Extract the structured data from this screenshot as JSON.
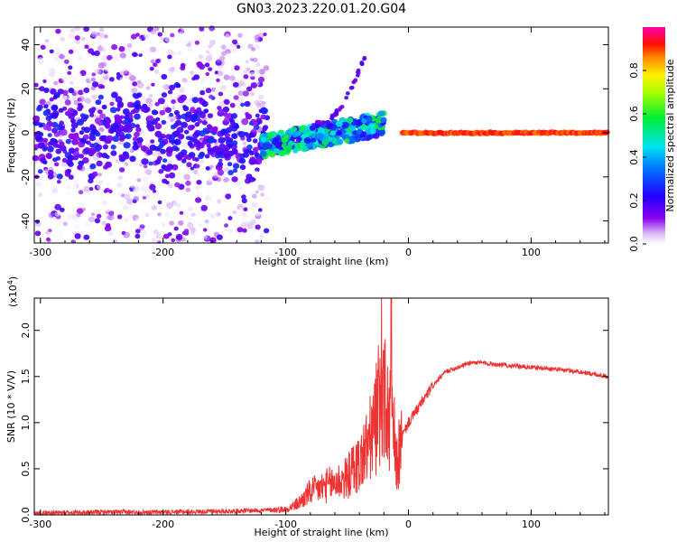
{
  "title": "GN03.2023.220.01.20.G04",
  "chart_data": [
    {
      "type": "scatter",
      "name": "spectrogram",
      "xlabel": "Height of straight line (km)",
      "ylabel": "Frequency (Hz)",
      "xlim": [
        -305,
        163
      ],
      "ylim": [
        -50,
        48
      ],
      "xticks": [
        -300,
        -200,
        -100,
        0,
        100
      ],
      "yticks": [
        -40,
        -20,
        0,
        20,
        40
      ],
      "colorbar": {
        "label": "Normalized spectral amplitude",
        "range": [
          0,
          1
        ],
        "ticks": [
          0.0,
          0.2,
          0.4,
          0.6,
          0.8
        ],
        "tick_labels": [
          "0.0",
          "0.2",
          "0.4",
          "0.6",
          "0.8"
        ],
        "colormap": "rainbow (purple-blue-cyan-green-yellow-red-magenta)"
      },
      "features": {
        "carrier_line": {
          "x_range": [
            -5,
            163
          ],
          "frequency": 0,
          "amplitude": 0.9
        },
        "approach_band": {
          "x_range": [
            -120,
            -20
          ],
          "frequency_range": [
            -12,
            10
          ],
          "amplitude_range": [
            0.3,
            0.6
          ]
        },
        "scatter_region": {
          "x_range": [
            -305,
            -115
          ],
          "frequency_range": [
            -50,
            48
          ],
          "amplitude_range": [
            0.0,
            0.3
          ]
        }
      }
    },
    {
      "type": "line",
      "name": "snr",
      "xlabel": "Height of straight line (km)",
      "ylabel": "SNR (10 * V/V)",
      "multiplier_label": "(x10",
      "multiplier_exp": "4",
      "multiplier_close": ")",
      "xlim": [
        -305,
        163
      ],
      "ylim": [
        0,
        2.35
      ],
      "xticks": [
        -300,
        -200,
        -100,
        0,
        100
      ],
      "yticks": [
        0.0,
        0.5,
        1.0,
        1.5,
        2.0
      ],
      "line_color": "#ee3333",
      "series": [
        {
          "x": [
            -305,
            -250,
            -200,
            -150,
            -120,
            -100,
            -90,
            -80,
            -70,
            -60,
            -50,
            -45,
            -40,
            -35,
            -30,
            -28,
            -25,
            -22,
            -20,
            -18,
            -15,
            -12,
            -10,
            -5,
            0,
            5,
            10,
            20,
            30,
            40,
            50,
            60,
            80,
            100,
            120,
            140,
            163
          ],
          "values": [
            0.02,
            0.03,
            0.03,
            0.04,
            0.05,
            0.06,
            0.12,
            0.25,
            0.3,
            0.35,
            0.4,
            0.5,
            0.55,
            0.7,
            0.85,
            0.95,
            1.1,
            1.5,
            1.3,
            1.1,
            1.0,
            0.9,
            0.5,
            0.85,
            1.0,
            1.1,
            1.2,
            1.4,
            1.55,
            1.6,
            1.65,
            1.65,
            1.62,
            1.6,
            1.58,
            1.55,
            1.5
          ]
        }
      ]
    }
  ]
}
